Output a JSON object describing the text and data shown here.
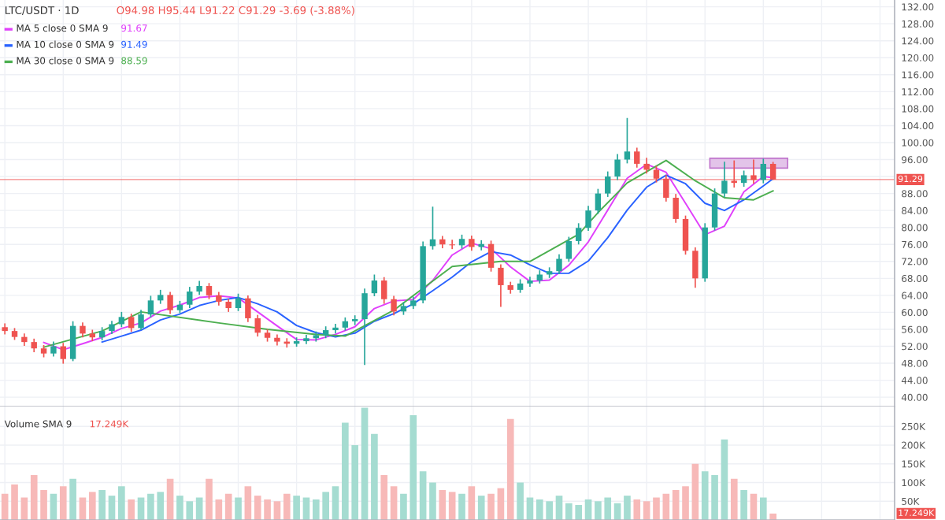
{
  "chart_data": [
    {
      "type": "candlestick",
      "title": "LTC/USDT · 1D",
      "subtitle": "O94.98 H95.44 L91.22 C91.29 -3.69 (-3.88%)",
      "categories": [
        null,
        null,
        null,
        null,
        null,
        null,
        null,
        null,
        null,
        null,
        null,
        null,
        null,
        null,
        null,
        null,
        null,
        null,
        null,
        null,
        null,
        null,
        null,
        null,
        null,
        null,
        null,
        null,
        null,
        null,
        null,
        null,
        null,
        null,
        null,
        null,
        null,
        null,
        null,
        null,
        null,
        null,
        null,
        null,
        null,
        null,
        null,
        null,
        null,
        null,
        null,
        null,
        null,
        null,
        null,
        null,
        null,
        null,
        null,
        null,
        null,
        null,
        null,
        null,
        null,
        null,
        null,
        null,
        null,
        null,
        null,
        null,
        null,
        null,
        null,
        null,
        null,
        null,
        null,
        null,
        null,
        null,
        null,
        null,
        null,
        null,
        null,
        null,
        null,
        null,
        null,
        null
      ],
      "ohlc": [
        [
          56.5,
          57.4,
          54.8,
          55.6
        ],
        [
          55.6,
          56.3,
          53.5,
          54.2
        ],
        [
          54.2,
          55.0,
          52.1,
          53.0
        ],
        [
          53.0,
          53.8,
          50.6,
          51.5
        ],
        [
          51.5,
          52.3,
          49.4,
          50.3
        ],
        [
          50.3,
          53.1,
          49.6,
          52.0
        ],
        [
          52.0,
          52.8,
          47.9,
          49.0
        ],
        [
          49.0,
          57.9,
          48.5,
          56.8
        ],
        [
          56.8,
          57.6,
          54.1,
          55.0
        ],
        [
          55.0,
          55.9,
          53.2,
          54.1
        ],
        [
          54.1,
          56.5,
          53.4,
          55.6
        ],
        [
          55.6,
          58.0,
          54.9,
          57.2
        ],
        [
          57.2,
          60.1,
          56.5,
          58.9
        ],
        [
          58.9,
          59.7,
          55.4,
          56.3
        ],
        [
          56.3,
          60.6,
          55.8,
          59.5
        ],
        [
          59.5,
          63.9,
          58.8,
          62.8
        ],
        [
          62.8,
          65.3,
          62.0,
          64.1
        ],
        [
          64.1,
          64.8,
          59.6,
          60.5
        ],
        [
          60.5,
          62.7,
          59.8,
          61.8
        ],
        [
          61.8,
          66.0,
          61.0,
          64.9
        ],
        [
          64.9,
          67.4,
          64.1,
          66.2
        ],
        [
          66.2,
          66.9,
          63.1,
          64.0
        ],
        [
          64.0,
          64.8,
          61.6,
          62.5
        ],
        [
          62.5,
          63.2,
          60.1,
          61.0
        ],
        [
          61.0,
          64.4,
          60.3,
          63.3
        ],
        [
          63.3,
          64.0,
          57.7,
          58.6
        ],
        [
          58.6,
          59.4,
          54.3,
          55.2
        ],
        [
          55.2,
          56.0,
          53.1,
          54.0
        ],
        [
          54.0,
          54.8,
          52.2,
          53.1
        ],
        [
          53.1,
          53.9,
          51.7,
          52.6
        ],
        [
          52.6,
          54.1,
          51.9,
          53.2
        ],
        [
          53.2,
          54.7,
          52.5,
          53.9
        ],
        [
          53.9,
          55.5,
          53.1,
          54.6
        ],
        [
          54.6,
          56.7,
          53.9,
          55.8
        ],
        [
          55.8,
          57.3,
          55.0,
          56.4
        ],
        [
          56.4,
          58.8,
          55.7,
          57.9
        ],
        [
          57.9,
          59.3,
          57.0,
          58.4
        ],
        [
          58.4,
          65.6,
          47.6,
          64.5
        ],
        [
          64.5,
          68.9,
          63.8,
          67.5
        ],
        [
          67.5,
          68.3,
          62.0,
          63.1
        ],
        [
          63.1,
          63.9,
          59.3,
          60.2
        ],
        [
          60.2,
          62.4,
          59.4,
          61.5
        ],
        [
          61.5,
          63.7,
          60.8,
          62.8
        ],
        [
          62.8,
          76.7,
          62.1,
          75.6
        ],
        [
          75.6,
          84.9,
          74.8,
          77.2
        ],
        [
          77.2,
          78.0,
          75.1,
          76.0
        ],
        [
          76.0,
          77.1,
          74.9,
          75.8
        ],
        [
          75.8,
          78.3,
          75.0,
          77.3
        ],
        [
          77.3,
          78.1,
          74.5,
          75.4
        ],
        [
          75.4,
          77.0,
          74.6,
          76.1
        ],
        [
          76.1,
          76.9,
          69.6,
          70.5
        ],
        [
          70.5,
          71.3,
          61.3,
          66.4
        ],
        [
          66.4,
          67.2,
          64.4,
          65.3
        ],
        [
          65.3,
          67.8,
          64.6,
          66.8
        ],
        [
          66.8,
          68.4,
          66.0,
          67.5
        ],
        [
          67.5,
          69.9,
          66.8,
          68.9
        ],
        [
          68.9,
          70.6,
          68.1,
          69.7
        ],
        [
          69.7,
          73.7,
          69.0,
          72.6
        ],
        [
          72.6,
          77.8,
          71.9,
          76.8
        ],
        [
          76.8,
          81.0,
          76.0,
          79.9
        ],
        [
          79.9,
          85.1,
          79.2,
          84.0
        ],
        [
          84.0,
          89.1,
          83.2,
          88.0
        ],
        [
          88.0,
          93.2,
          87.2,
          92.0
        ],
        [
          92.0,
          97.3,
          91.2,
          96.0
        ],
        [
          96.0,
          105.8,
          95.1,
          97.9
        ],
        [
          97.9,
          98.8,
          94.1,
          95.0
        ],
        [
          95.0,
          96.4,
          92.7,
          93.6
        ],
        [
          93.6,
          94.5,
          90.6,
          91.5
        ],
        [
          91.5,
          92.4,
          86.1,
          87.0
        ],
        [
          87.0,
          87.9,
          81.1,
          82.0
        ],
        [
          82.0,
          82.8,
          73.6,
          74.5
        ],
        [
          74.5,
          75.3,
          65.8,
          68.0
        ],
        [
          68.0,
          81.0,
          67.2,
          80.0
        ],
        [
          80.0,
          89.2,
          79.3,
          88.0
        ],
        [
          88.0,
          95.5,
          87.1,
          91.0
        ],
        [
          91.0,
          95.8,
          89.4,
          90.5
        ],
        [
          90.5,
          93.4,
          89.6,
          92.3
        ],
        [
          92.3,
          96.0,
          90.3,
          91.2
        ],
        [
          91.2,
          96.2,
          90.4,
          94.98
        ],
        [
          94.98,
          95.44,
          91.22,
          91.29
        ],
        null,
        null,
        null,
        null,
        null,
        null,
        null,
        null,
        null,
        null,
        null,
        null
      ],
      "colors": [
        "#ef5350",
        "#ef5350",
        "#ef5350",
        "#ef5350",
        "#ef5350",
        "#26a69a",
        "#ef5350",
        "#26a69a",
        "#ef5350",
        "#ef5350",
        "#26a69a",
        "#26a69a",
        "#26a69a",
        "#ef5350",
        "#26a69a",
        "#26a69a",
        "#26a69a",
        "#ef5350",
        "#26a69a",
        "#26a69a",
        "#26a69a",
        "#ef5350",
        "#ef5350",
        "#ef5350",
        "#26a69a",
        "#ef5350",
        "#ef5350",
        "#ef5350",
        "#ef5350",
        "#ef5350",
        "#26a69a",
        "#26a69a",
        "#26a69a",
        "#26a69a",
        "#26a69a",
        "#26a69a",
        "#26a69a",
        "#26a69a",
        "#26a69a",
        "#ef5350",
        "#ef5350",
        "#26a69a",
        "#26a69a",
        "#26a69a",
        "#26a69a",
        "#ef5350",
        "#ef5350",
        "#26a69a",
        "#ef5350",
        "#26a69a",
        "#ef5350",
        "#ef5350",
        "#ef5350",
        "#26a69a",
        "#26a69a",
        "#26a69a",
        "#26a69a",
        "#26a69a",
        "#26a69a",
        "#26a69a",
        "#26a69a",
        "#26a69a",
        "#26a69a",
        "#26a69a",
        "#26a69a",
        "#ef5350",
        "#ef5350",
        "#ef5350",
        "#ef5350",
        "#ef5350",
        "#ef5350",
        "#ef5350",
        "#26a69a",
        "#26a69a",
        "#26a69a",
        "#ef5350",
        "#26a69a",
        "#ef5350",
        "#26a69a",
        "#ef5350",
        null,
        null,
        null,
        null,
        null,
        null,
        null,
        null,
        null,
        null,
        null,
        null
      ],
      "series": [
        {
          "type": "line",
          "name": "MA 5 close 0 SMA 9",
          "color": "#e040fb",
          "values": [
            null,
            null,
            null,
            null,
            52.9,
            null,
            51.2,
            null,
            52.6,
            null,
            54.1,
            null,
            56.2,
            null,
            57.5,
            null,
            60.3,
            null,
            61.7,
            null,
            63.5,
            null,
            63.9,
            null,
            63.4,
            null,
            60.1,
            null,
            56.8,
            null,
            53.6,
            null,
            53.5,
            null,
            54.8,
            null,
            56.6,
            null,
            60.9,
            null,
            62.7,
            null,
            63.0,
            null,
            67.5,
            null,
            73.5,
            null,
            76.3,
            null,
            75.0,
            null,
            70.7,
            null,
            67.3,
            null,
            67.6,
            null,
            71.1,
            null,
            76.6,
            null,
            84.1,
            null,
            91.6,
            null,
            94.9,
            null,
            93.0,
            null,
            85.7,
            null,
            78.3,
            null,
            80.3,
            null,
            88.4,
            null,
            92.0,
            91.7,
            null,
            null,
            null,
            null,
            null,
            null,
            null,
            null,
            null,
            null,
            null,
            null
          ]
        },
        {
          "type": "line",
          "name": "MA 10 close 0 SMA 9",
          "color": "#2962ff",
          "values": [
            null,
            null,
            null,
            null,
            null,
            null,
            null,
            null,
            null,
            null,
            53.0,
            null,
            54.4,
            null,
            55.8,
            null,
            58.2,
            null,
            59.6,
            null,
            61.6,
            null,
            62.8,
            null,
            63.5,
            null,
            62.0,
            null,
            60.1,
            null,
            56.9,
            null,
            55.2,
            null,
            54.2,
            null,
            55.1,
            null,
            57.9,
            null,
            59.7,
            null,
            62.0,
            null,
            65.1,
            null,
            68.3,
            null,
            71.9,
            null,
            74.3,
            null,
            73.5,
            null,
            71.2,
            null,
            69.2,
            null,
            69.2,
            null,
            72.1,
            null,
            77.6,
            null,
            84.1,
            null,
            89.5,
            null,
            92.3,
            null,
            90.3,
            null,
            85.7,
            null,
            84.0,
            null,
            86.5,
            null,
            89.8,
            91.5,
            null,
            null,
            null,
            null,
            null,
            null,
            null,
            null,
            null,
            null,
            null,
            null
          ]
        },
        {
          "type": "line",
          "name": "MA 30 close 0 SMA 9",
          "color": "#4caf50",
          "values": [
            null,
            null,
            null,
            null,
            51.8,
            null,
            null,
            null,
            null,
            null,
            55.6,
            null,
            null,
            null,
            60.1,
            null,
            null,
            null,
            null,
            null,
            null,
            null,
            57.5,
            null,
            null,
            null,
            null,
            56.0,
            null,
            null,
            null,
            null,
            54.8,
            null,
            null,
            54.4,
            null,
            null,
            null,
            null,
            60.5,
            null,
            null,
            null,
            null,
            null,
            70.8,
            null,
            null,
            null,
            null,
            72.0,
            null,
            null,
            72.0,
            null,
            null,
            null,
            null,
            78.4,
            null,
            83.5,
            null,
            null,
            90.5,
            null,
            null,
            null,
            95.8,
            null,
            null,
            91.0,
            null,
            null,
            87.0,
            null,
            null,
            86.5,
            null,
            88.6,
            null,
            null,
            null,
            null,
            null,
            null,
            null,
            null,
            null,
            null,
            null,
            null
          ]
        }
      ],
      "annotations": [
        "91.67",
        "91.49",
        "88.59"
      ],
      "ylim": [
        37.8,
        133.6
      ],
      "yticks": [
        {
          "value": 40,
          "label": "40.00"
        },
        {
          "value": 44,
          "label": "44.00"
        },
        {
          "value": 48,
          "label": "48.00"
        },
        {
          "value": 52,
          "label": "52.00"
        },
        {
          "value": 56,
          "label": "56.00"
        },
        {
          "value": 60,
          "label": "60.00"
        },
        {
          "value": 64,
          "label": "64.00"
        },
        {
          "value": 68,
          "label": "68.00"
        },
        {
          "value": 72,
          "label": "72.00"
        },
        {
          "value": 76,
          "label": "76.00"
        },
        {
          "value": 80,
          "label": "80.00"
        },
        {
          "value": 84,
          "label": "84.00"
        },
        {
          "value": 88,
          "label": "88.00"
        },
        {
          "value": 92,
          "label": null
        },
        {
          "value": 96,
          "label": "96.00"
        },
        {
          "value": 100,
          "label": "100.00"
        },
        {
          "value": 104,
          "label": "104.00"
        },
        {
          "value": 108,
          "label": "108.00"
        },
        {
          "value": 112,
          "label": "112.00"
        },
        {
          "value": 116,
          "label": "116.00"
        },
        {
          "value": 120,
          "label": "120.00"
        },
        {
          "value": 124,
          "label": "124.00"
        },
        {
          "value": 128,
          "label": "128.00"
        },
        {
          "value": 132,
          "label": "132.00"
        }
      ],
      "ref_lines": [
        {
          "axis": "y",
          "value": 91.29,
          "label": "91.29",
          "color": "#ef5350"
        }
      ],
      "bands": [
        {
          "axis": "y",
          "from": 94.0,
          "to": 96.3,
          "color": "#e1bee7"
        }
      ],
      "grid": true,
      "legend": "top left",
      "tick_labels": "y"
    },
    {
      "type": "bar",
      "title": "Volume SMA 9",
      "categories": [
        null,
        null,
        null,
        null,
        null,
        null,
        null,
        null,
        null,
        null,
        null,
        null,
        null,
        null,
        null,
        null,
        null,
        null,
        null,
        null,
        null,
        null,
        null,
        null,
        null,
        null,
        null,
        null,
        null,
        null,
        null,
        null,
        null,
        null,
        null,
        null,
        null,
        null,
        null,
        null,
        null,
        null,
        null,
        null,
        null,
        null,
        null,
        null,
        null,
        null,
        null,
        null,
        null,
        null,
        null,
        null,
        null,
        null,
        null,
        null,
        null,
        null,
        null,
        null,
        null,
        null,
        null,
        null,
        null,
        null,
        null,
        null,
        null,
        null,
        null,
        null,
        null,
        null,
        null,
        null,
        null,
        null,
        null,
        null,
        null,
        null,
        null,
        null,
        null,
        null,
        null,
        null
      ],
      "values": [
        70000,
        95000,
        60000,
        120000,
        80000,
        70000,
        90000,
        110000,
        60000,
        75000,
        80000,
        65000,
        90000,
        55000,
        60000,
        70000,
        75000,
        110000,
        65000,
        50000,
        60000,
        110000,
        55000,
        70000,
        60000,
        90000,
        65000,
        55000,
        50000,
        70000,
        65000,
        60000,
        55000,
        75000,
        90000,
        260000,
        200000,
        300000,
        230000,
        120000,
        90000,
        70000,
        280000,
        130000,
        100000,
        80000,
        75000,
        70000,
        90000,
        65000,
        70000,
        85000,
        270000,
        100000,
        60000,
        55000,
        50000,
        65000,
        45000,
        40000,
        55000,
        50000,
        60000,
        45000,
        65000,
        55000,
        50000,
        60000,
        70000,
        80000,
        90000,
        150000,
        130000,
        120000,
        215000,
        110000,
        80000,
        70000,
        60000,
        17249,
        null,
        null,
        null,
        null,
        null,
        null,
        null,
        null,
        null,
        null,
        null,
        null
      ],
      "colors": [
        "#f7b9b8",
        "#f7b9b8",
        "#f7b9b8",
        "#f7b9b8",
        "#f7b9b8",
        "#a5dcd1",
        "#f7b9b8",
        "#a5dcd1",
        "#f7b9b8",
        "#f7b9b8",
        "#a5dcd1",
        "#a5dcd1",
        "#a5dcd1",
        "#f7b9b8",
        "#a5dcd1",
        "#a5dcd1",
        "#a5dcd1",
        "#f7b9b8",
        "#a5dcd1",
        "#a5dcd1",
        "#a5dcd1",
        "#f7b9b8",
        "#f7b9b8",
        "#f7b9b8",
        "#a5dcd1",
        "#f7b9b8",
        "#f7b9b8",
        "#f7b9b8",
        "#f7b9b8",
        "#f7b9b8",
        "#a5dcd1",
        "#a5dcd1",
        "#a5dcd1",
        "#a5dcd1",
        "#a5dcd1",
        "#a5dcd1",
        "#a5dcd1",
        "#a5dcd1",
        "#a5dcd1",
        "#f7b9b8",
        "#f7b9b8",
        "#a5dcd1",
        "#a5dcd1",
        "#a5dcd1",
        "#a5dcd1",
        "#f7b9b8",
        "#f7b9b8",
        "#a5dcd1",
        "#f7b9b8",
        "#a5dcd1",
        "#f7b9b8",
        "#f7b9b8",
        "#f7b9b8",
        "#a5dcd1",
        "#a5dcd1",
        "#a5dcd1",
        "#a5dcd1",
        "#a5dcd1",
        "#a5dcd1",
        "#a5dcd1",
        "#a5dcd1",
        "#a5dcd1",
        "#a5dcd1",
        "#a5dcd1",
        "#a5dcd1",
        "#f7b9b8",
        "#f7b9b8",
        "#f7b9b8",
        "#f7b9b8",
        "#f7b9b8",
        "#f7b9b8",
        "#f7b9b8",
        "#a5dcd1",
        "#a5dcd1",
        "#a5dcd1",
        "#f7b9b8",
        "#a5dcd1",
        "#f7b9b8",
        "#a5dcd1",
        "#f7b9b8",
        null,
        null,
        null,
        null,
        null,
        null,
        null,
        null,
        null,
        null,
        null,
        null
      ],
      "ylim": [
        0,
        303000
      ],
      "yticks": [
        {
          "value": 50000,
          "label": "50K"
        },
        {
          "value": 100000,
          "label": "100K"
        },
        {
          "value": 150000,
          "label": "150K"
        },
        {
          "value": 200000,
          "label": "200K"
        },
        {
          "value": 250000,
          "label": "250K"
        }
      ],
      "annotations": [
        "17.249K",
        "17.249K"
      ],
      "grid": true,
      "tick_labels": "y"
    }
  ]
}
